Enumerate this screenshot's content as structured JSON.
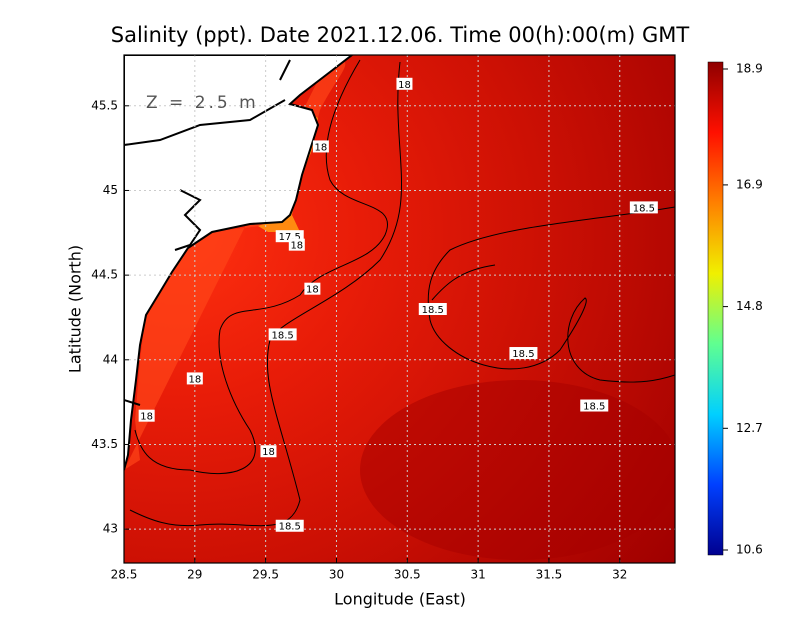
{
  "chart_data": {
    "type": "contour-map",
    "title": "Salinity (ppt). Date 2021.12.06. Time 00(h):00(m) GMT",
    "annotation": "Z = 2.5 m",
    "xlabel": "Longitude (East)",
    "ylabel": "Latitude (North)",
    "xlim": [
      28.5,
      32.39
    ],
    "ylim": [
      42.8,
      45.8
    ],
    "xticks": [
      28.5,
      29,
      29.5,
      30,
      30.5,
      31,
      31.5,
      32
    ],
    "yticks": [
      43,
      43.5,
      44,
      44.5,
      45,
      45.5
    ],
    "grid": true,
    "colorbar": {
      "lim": [
        10.6,
        18.9
      ],
      "ticks": [
        10.6,
        12.7,
        14.8,
        16.9,
        18.9
      ],
      "colors": [
        "#00008f",
        "#0040ff",
        "#00d0ff",
        "#60ff90",
        "#f0f000",
        "#ff8000",
        "#ff1000",
        "#8f0000"
      ]
    },
    "contour_labels": [
      {
        "lon": 30.48,
        "lat": 45.63,
        "value": 18
      },
      {
        "lon": 29.89,
        "lat": 45.26,
        "value": 18
      },
      {
        "lon": 29.67,
        "lat": 44.73,
        "value": 17.5
      },
      {
        "lon": 29.72,
        "lat": 44.68,
        "value": 18
      },
      {
        "lon": 29.83,
        "lat": 44.42,
        "value": 18
      },
      {
        "lon": 29.62,
        "lat": 44.15,
        "value": 18.5
      },
      {
        "lon": 30.68,
        "lat": 44.3,
        "value": 18.5
      },
      {
        "lon": 32.17,
        "lat": 44.9,
        "value": 18.5
      },
      {
        "lon": 31.32,
        "lat": 44.04,
        "value": 18.5
      },
      {
        "lon": 31.82,
        "lat": 43.73,
        "value": 18.5
      },
      {
        "lon": 29.0,
        "lat": 43.89,
        "value": 18
      },
      {
        "lon": 28.66,
        "lat": 43.67,
        "value": 18
      },
      {
        "lon": 29.52,
        "lat": 43.46,
        "value": 18
      },
      {
        "lon": 29.67,
        "lat": 43.02,
        "value": 18.5
      }
    ]
  }
}
